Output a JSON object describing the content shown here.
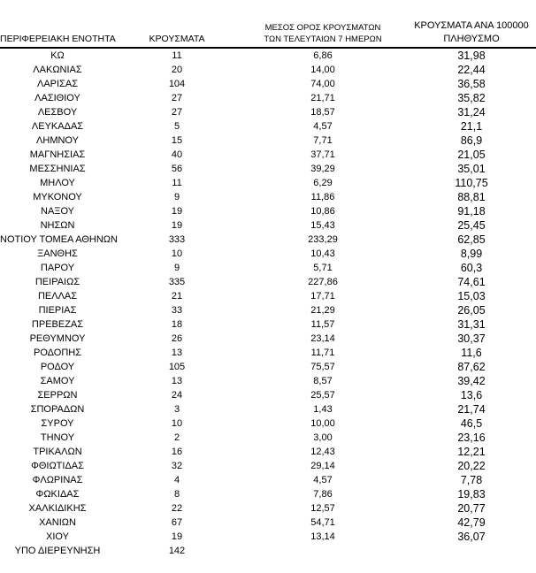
{
  "colors": {
    "background": "#ffffff",
    "text": "#000000",
    "header_rule": "#000000"
  },
  "table": {
    "headers": {
      "region": "ΠΕΡΙΦΕΡΕΙΑΚΗ ΕΝΟΤΗΤΑ",
      "cases": "ΚΡΟΥΣΜΑΤΑ",
      "avg7_line1": "ΜΕΣΟΣ ΟΡΟΣ ΚΡΟΥΣΜΑΤΩΝ",
      "avg7_line2": "ΤΩΝ ΤΕΛΕΥΤΑΙΩΝ 7 ΗΜΕΡΩΝ",
      "per100k_line1": "ΚΡΟΥΣΜΑΤΑ ΑΝΑ 100000",
      "per100k_line2": "ΠΛΗΘΥΣΜΟ"
    },
    "rows": [
      {
        "region": "ΚΩ",
        "cases": "11",
        "avg7": "6,86",
        "per100k": "31,98"
      },
      {
        "region": "ΛΑΚΩΝΙΑΣ",
        "cases": "20",
        "avg7": "14,00",
        "per100k": "22,44"
      },
      {
        "region": "ΛΑΡΙΣΑΣ",
        "cases": "104",
        "avg7": "74,00",
        "per100k": "36,58"
      },
      {
        "region": "ΛΑΣΙΘΙΟΥ",
        "cases": "27",
        "avg7": "21,71",
        "per100k": "35,82"
      },
      {
        "region": "ΛΕΣΒΟΥ",
        "cases": "27",
        "avg7": "18,57",
        "per100k": "31,24"
      },
      {
        "region": "ΛΕΥΚΑΔΑΣ",
        "cases": "5",
        "avg7": "4,57",
        "per100k": "21,1"
      },
      {
        "region": "ΛΗΜΝΟΥ",
        "cases": "15",
        "avg7": "7,71",
        "per100k": "86,9"
      },
      {
        "region": "ΜΑΓΝΗΣΙΑΣ",
        "cases": "40",
        "avg7": "37,71",
        "per100k": "21,05"
      },
      {
        "region": "ΜΕΣΣΗΝΙΑΣ",
        "cases": "56",
        "avg7": "39,29",
        "per100k": "35,01"
      },
      {
        "region": "ΜΗΛΟΥ",
        "cases": "11",
        "avg7": "6,29",
        "per100k": "110,75"
      },
      {
        "region": "ΜΥΚΟΝΟΥ",
        "cases": "9",
        "avg7": "11,86",
        "per100k": "88,81"
      },
      {
        "region": "ΝΑΞΟΥ",
        "cases": "19",
        "avg7": "10,86",
        "per100k": "91,18"
      },
      {
        "region": "ΝΗΣΩΝ",
        "cases": "19",
        "avg7": "15,43",
        "per100k": "25,45"
      },
      {
        "region": "ΝΟΤΙΟΥ ΤΟΜΕΑ ΑΘΗΝΩΝ",
        "cases": "333",
        "avg7": "233,29",
        "per100k": "62,85"
      },
      {
        "region": "ΞΑΝΘΗΣ",
        "cases": "10",
        "avg7": "10,43",
        "per100k": "8,99"
      },
      {
        "region": "ΠΑΡΟΥ",
        "cases": "9",
        "avg7": "5,71",
        "per100k": "60,3"
      },
      {
        "region": "ΠΕΙΡΑΙΩΣ",
        "cases": "335",
        "avg7": "227,86",
        "per100k": "74,61"
      },
      {
        "region": "ΠΕΛΛΑΣ",
        "cases": "21",
        "avg7": "17,71",
        "per100k": "15,03"
      },
      {
        "region": "ΠΙΕΡΙΑΣ",
        "cases": "33",
        "avg7": "21,29",
        "per100k": "26,05"
      },
      {
        "region": "ΠΡΕΒΕΖΑΣ",
        "cases": "18",
        "avg7": "11,57",
        "per100k": "31,31"
      },
      {
        "region": "ΡΕΘΥΜΝΟΥ",
        "cases": "26",
        "avg7": "23,14",
        "per100k": "30,37"
      },
      {
        "region": "ΡΟΔΟΠΗΣ",
        "cases": "13",
        "avg7": "11,71",
        "per100k": "11,6"
      },
      {
        "region": "ΡΟΔΟΥ",
        "cases": "105",
        "avg7": "75,57",
        "per100k": "87,62"
      },
      {
        "region": "ΣΑΜΟΥ",
        "cases": "13",
        "avg7": "8,57",
        "per100k": "39,42"
      },
      {
        "region": "ΣΕΡΡΩΝ",
        "cases": "24",
        "avg7": "25,57",
        "per100k": "13,6"
      },
      {
        "region": "ΣΠΟΡΑΔΩΝ",
        "cases": "3",
        "avg7": "1,43",
        "per100k": "21,74"
      },
      {
        "region": "ΣΥΡΟΥ",
        "cases": "10",
        "avg7": "10,00",
        "per100k": "46,5"
      },
      {
        "region": "ΤΗΝΟΥ",
        "cases": "2",
        "avg7": "3,00",
        "per100k": "23,16"
      },
      {
        "region": "ΤΡΙΚΑΛΩΝ",
        "cases": "16",
        "avg7": "12,43",
        "per100k": "12,21"
      },
      {
        "region": "ΦΘΙΩΤΙΔΑΣ",
        "cases": "32",
        "avg7": "29,14",
        "per100k": "20,22"
      },
      {
        "region": "ΦΛΩΡΙΝΑΣ",
        "cases": "4",
        "avg7": "4,57",
        "per100k": "7,78"
      },
      {
        "region": "ΦΩΚΙΔΑΣ",
        "cases": "8",
        "avg7": "7,86",
        "per100k": "19,83"
      },
      {
        "region": "ΧΑΛΚΙΔΙΚΗΣ",
        "cases": "22",
        "avg7": "12,57",
        "per100k": "20,77"
      },
      {
        "region": "ΧΑΝΙΩΝ",
        "cases": "67",
        "avg7": "54,71",
        "per100k": "42,79"
      },
      {
        "region": "ΧΙΟΥ",
        "cases": "19",
        "avg7": "13,14",
        "per100k": "36,07"
      },
      {
        "region": "ΥΠΟ ΔΙΕΡΕΥΝΗΣΗ",
        "cases": "142",
        "avg7": "",
        "per100k": ""
      }
    ]
  }
}
